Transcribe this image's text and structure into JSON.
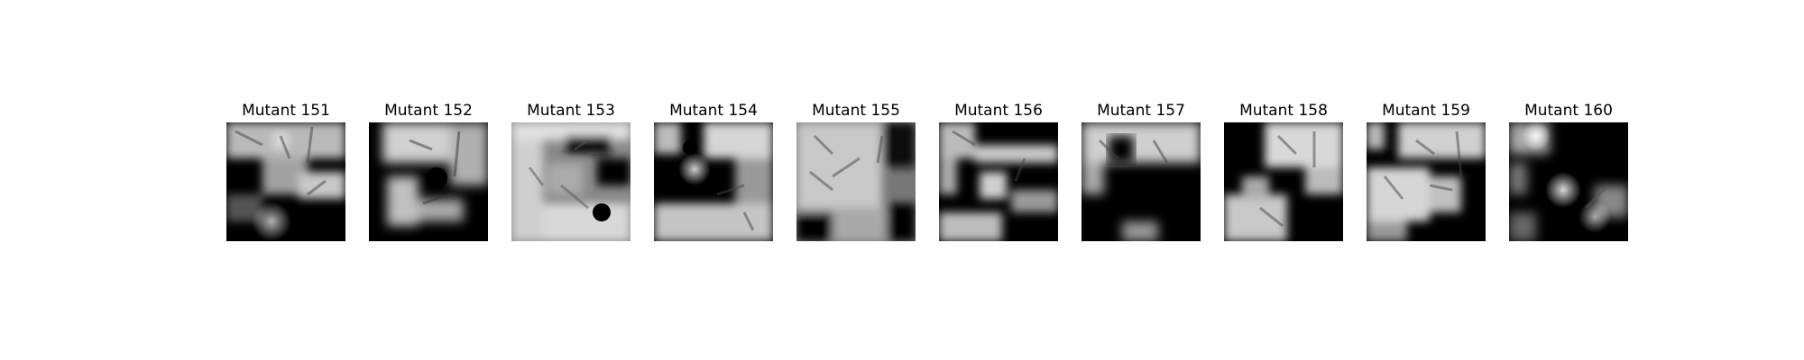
{
  "figure": {
    "background": "#ffffff",
    "panels": [
      {
        "title": "Mutant 151"
      },
      {
        "title": "Mutant 152"
      },
      {
        "title": "Mutant 153"
      },
      {
        "title": "Mutant 154"
      },
      {
        "title": "Mutant 155"
      },
      {
        "title": "Mutant 156"
      },
      {
        "title": "Mutant 157"
      },
      {
        "title": "Mutant 158"
      },
      {
        "title": "Mutant 159"
      },
      {
        "title": "Mutant 160"
      }
    ]
  }
}
